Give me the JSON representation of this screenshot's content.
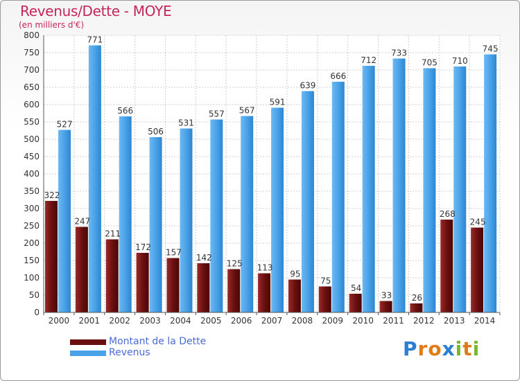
{
  "header": {
    "title": "Revenus/Dette - MOYE",
    "subtitle": "(en milliers d'€)"
  },
  "legend": {
    "items": [
      {
        "label": "Montant de la Dette",
        "color": "#6b1010"
      },
      {
        "label": "Revenus",
        "color": "#4aa2e8"
      }
    ]
  },
  "logo": {
    "text": "Proxiti",
    "letters": [
      {
        "ch": "P",
        "color": "#2a7fd4"
      },
      {
        "ch": "r",
        "color": "#e07b1a"
      },
      {
        "ch": "o",
        "color": "#e07b1a"
      },
      {
        "ch": "x",
        "color": "#2a7fd4"
      },
      {
        "ch": "i",
        "color": "#77b82a"
      },
      {
        "ch": "t",
        "color": "#e07b1a"
      },
      {
        "ch": "i",
        "color": "#77b82a"
      }
    ]
  },
  "chart_data": {
    "type": "bar",
    "title": "Revenus/Dette - MOYE",
    "subtitle": "(en milliers d'€)",
    "categories": [
      "2000",
      "2001",
      "2002",
      "2003",
      "2004",
      "2005",
      "2006",
      "2007",
      "2008",
      "2009",
      "2010",
      "2011",
      "2012",
      "2013",
      "2014"
    ],
    "series": [
      {
        "name": "Montant de la Dette",
        "color": "#6b1010",
        "values": [
          322,
          247,
          211,
          172,
          157,
          142,
          125,
          113,
          95,
          75,
          54,
          33,
          26,
          268,
          245
        ]
      },
      {
        "name": "Revenus",
        "color": "#4aa2e8",
        "values": [
          527,
          771,
          566,
          506,
          531,
          557,
          567,
          591,
          639,
          666,
          712,
          733,
          705,
          710,
          745
        ]
      }
    ],
    "ylim": [
      0,
      800
    ],
    "yticks": [
      0,
      50,
      100,
      150,
      200,
      250,
      300,
      350,
      400,
      450,
      500,
      550,
      600,
      650,
      700,
      750,
      800
    ],
    "grid": true,
    "legend": "bottom-left"
  }
}
